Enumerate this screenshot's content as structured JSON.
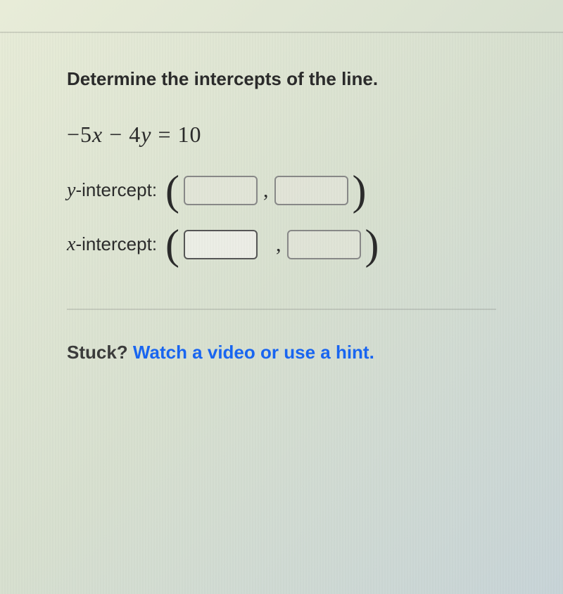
{
  "question": {
    "title": "Determine the intercepts of the line.",
    "equation_display": "−5x − 4y = 10",
    "equation": {
      "coef1": "−5",
      "var1": "x",
      "op": " − ",
      "coef2": "4",
      "var2": "y",
      "eq": " = ",
      "rhs": "10"
    }
  },
  "intercepts": {
    "y": {
      "var": "y",
      "label": "-intercept:",
      "input1_value": "",
      "input2_value": ""
    },
    "x": {
      "var": "x",
      "label": "-intercept:",
      "input1_value": "",
      "input2_value": ""
    }
  },
  "help": {
    "stuck_text": "Stuck? ",
    "video_link": "Watch a video",
    "or_text": " or ",
    "hint_link": "use a hint",
    "period": "."
  },
  "colors": {
    "text": "#2a2a2a",
    "link": "#1865f2",
    "input_border": "#888888",
    "divider": "rgba(100,100,100,0.2)",
    "background_start": "#e8ecd8",
    "background_end": "#c8d4d8"
  },
  "typography": {
    "title_fontsize": 26,
    "equation_fontsize": 32,
    "label_fontsize": 26,
    "help_fontsize": 26
  }
}
